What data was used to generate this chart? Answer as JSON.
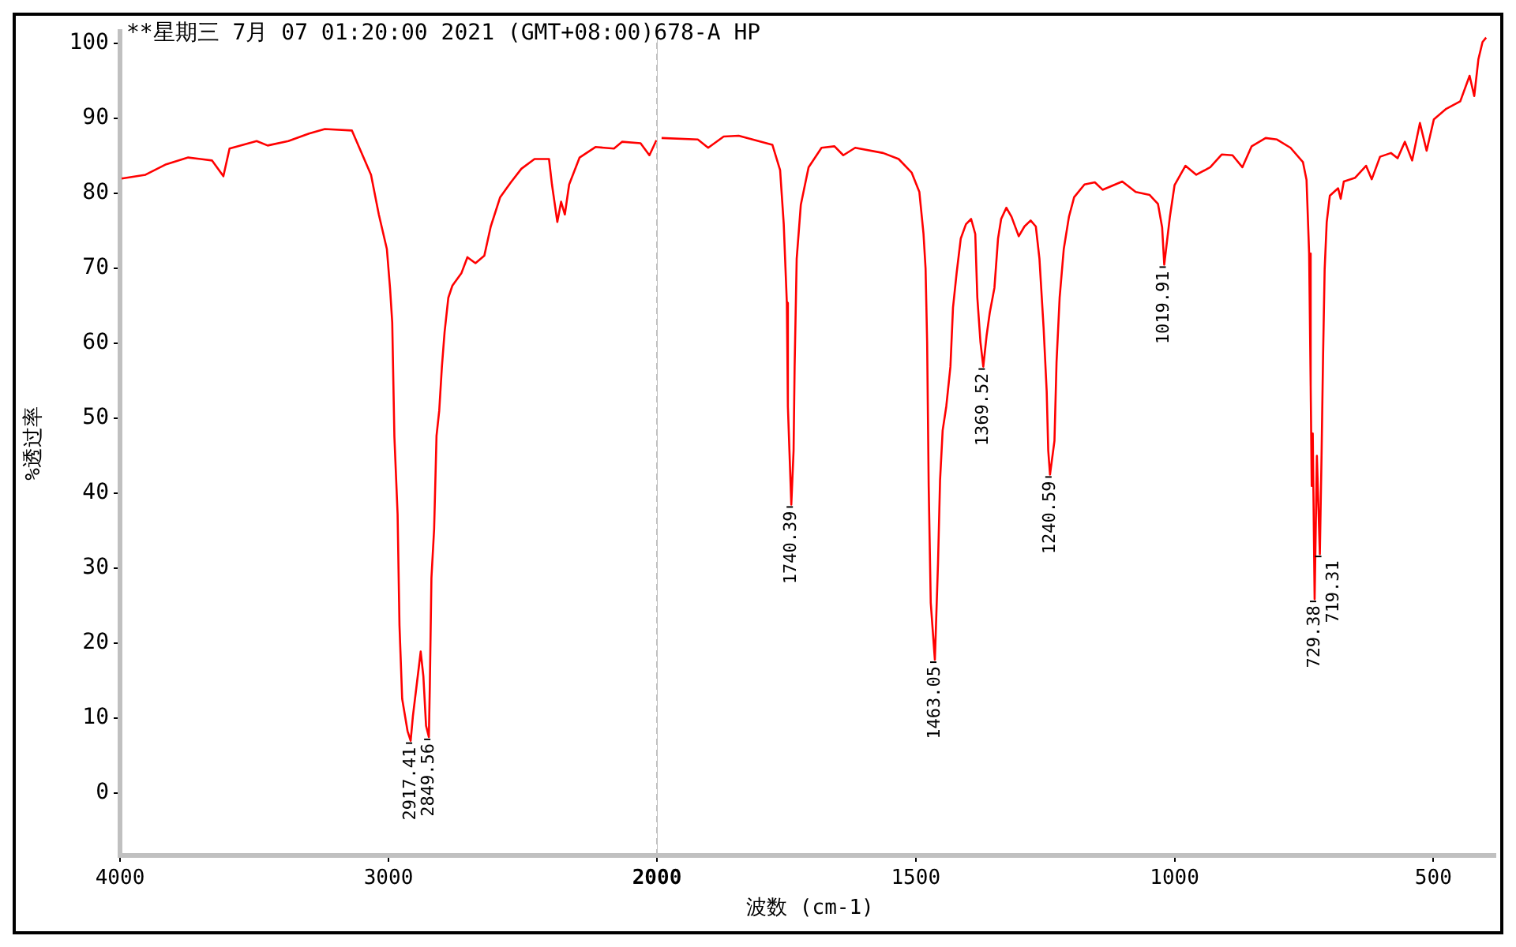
{
  "chart_data": [
    {
      "type": "line",
      "title": "**星期三 7月 07 01:20:00 2021 (GMT+08:00)678-A HP",
      "ylabel": "%透过率",
      "xlim": [
        4000,
        2000
      ],
      "xticks": [
        4000,
        3000,
        2000
      ],
      "ylim": [
        -8.3,
        101.6
      ],
      "yticks": [
        0,
        10,
        20,
        30,
        40,
        50,
        60,
        70,
        80,
        90,
        100
      ],
      "grid": false,
      "legend": false,
      "marker": "none",
      "ref_lines": [
        {
          "axis": "x",
          "value": 2000,
          "color": "#c0c0c0",
          "line_style": "dashed"
        }
      ],
      "annotations": [
        {
          "text": "2917.41",
          "x": 2917.41,
          "y": 7.0
        },
        {
          "text": "2849.56",
          "x": 2849.56,
          "y": 7.5
        }
      ],
      "series": [
        {
          "color": "#ff0000",
          "x": [
            3994,
            3905,
            3828,
            3746,
            3657,
            3615,
            3592,
            3491,
            3450,
            3373,
            3296,
            3237,
            3136,
            3112,
            3065,
            3036,
            3006,
            2994,
            2986,
            2978,
            2966,
            2959,
            2949,
            2929,
            2917.41,
            2909,
            2889,
            2880,
            2870,
            2860,
            2849.56,
            2846,
            2840,
            2830,
            2821,
            2811,
            2801,
            2791,
            2777,
            2762,
            2728,
            2706,
            2676,
            2643,
            2619,
            2584,
            2544,
            2505,
            2456,
            2402,
            2391,
            2371,
            2357,
            2343,
            2327,
            2288,
            2229,
            2160,
            2130,
            2061,
            2028,
            2002
          ],
          "values": [
            82.0,
            82.5,
            83.9,
            84.8,
            84.4,
            82.3,
            86.0,
            87.0,
            86.4,
            87.0,
            88.0,
            88.6,
            88.4,
            86.4,
            82.5,
            77.2,
            72.6,
            67.3,
            62.8,
            47.6,
            37.2,
            22.4,
            12.6,
            8.3,
            7.0,
            10.3,
            16.2,
            18.9,
            15.6,
            9.0,
            7.5,
            14.2,
            28.7,
            35.2,
            47.7,
            51.0,
            56.9,
            61.5,
            66.1,
            67.7,
            69.4,
            71.5,
            70.7,
            71.7,
            75.6,
            79.5,
            81.5,
            83.3,
            84.6,
            84.6,
            81.2,
            76.2,
            78.9,
            77.2,
            81.2,
            84.8,
            86.2,
            86.0,
            86.9,
            86.7,
            85.1,
            87.1
          ]
        }
      ]
    },
    {
      "type": "line",
      "xlabel": "波数 (cm-1)",
      "xlim": [
        2000,
        380
      ],
      "xticks": [
        1500,
        1000,
        500
      ],
      "ylim": [
        -8.3,
        101.6
      ],
      "yticks": [
        0,
        10,
        20,
        30,
        40,
        50,
        60,
        70,
        80,
        90,
        100
      ],
      "tick_labels": "x",
      "grid": false,
      "legend": false,
      "marker": "none",
      "annotations": [
        {
          "text": "1740.39",
          "x": 1740.39,
          "y": 38.5
        },
        {
          "text": "1463.05",
          "x": 1463.05,
          "y": 17.8
        },
        {
          "text": "1369.52",
          "x": 1369.52,
          "y": 56.9
        },
        {
          "text": "1240.59",
          "x": 1240.59,
          "y": 42.5
        },
        {
          "text": "1019.91",
          "x": 1019.91,
          "y": 70.5
        },
        {
          "text": "729.38",
          "x": 729.38,
          "y": 25.9
        },
        {
          "text": "719.31",
          "x": 719.31,
          "y": 31.9
        }
      ],
      "series": [
        {
          "color": "#ff0000",
          "x": [
            1991,
            1921,
            1901,
            1871,
            1842,
            1777,
            1762,
            1755,
            1749,
            1747,
            1740.39,
            1736,
            1734,
            1730,
            1722,
            1707,
            1682,
            1657,
            1640,
            1617,
            1563,
            1533,
            1508,
            1493,
            1485,
            1481,
            1478,
            1475,
            1471,
            1463.05,
            1457,
            1453,
            1448,
            1441,
            1433,
            1428,
            1421,
            1413,
            1403,
            1393,
            1385,
            1381,
            1375,
            1369.52,
            1363,
            1357,
            1348,
            1341,
            1335,
            1325,
            1315,
            1301,
            1290,
            1278,
            1268,
            1261,
            1253,
            1247,
            1244,
            1240.59,
            1232,
            1228,
            1222,
            1214,
            1204,
            1194,
            1174,
            1154,
            1139,
            1101,
            1075,
            1048,
            1032,
            1024,
            1019.91,
            1009,
            1000,
            979,
            958,
            931,
            909,
            888,
            869,
            851,
            824,
            802,
            776,
            752,
            745,
            740,
            737,
            735,
            733,
            729.38,
            725,
            719.31,
            716,
            713,
            710,
            706,
            700,
            684,
            679,
            673,
            651,
            630,
            619,
            603,
            582,
            569,
            555,
            541,
            526,
            513,
            499,
            475,
            448,
            430,
            421,
            413,
            405,
            398
          ],
          "values": [
            87.4,
            87.2,
            86.1,
            87.6,
            87.7,
            86.5,
            83.1,
            75.9,
            65.4,
            51.6,
            38.5,
            45.7,
            56.9,
            71.3,
            78.5,
            83.5,
            86.1,
            86.3,
            85.1,
            86.1,
            85.4,
            84.6,
            82.8,
            80.2,
            74.6,
            70.0,
            60.2,
            41.1,
            25.4,
            17.8,
            30.6,
            41.8,
            48.4,
            51.6,
            56.9,
            64.8,
            69.4,
            74.0,
            75.9,
            76.6,
            74.6,
            66.1,
            60.2,
            56.9,
            61.1,
            64.1,
            67.4,
            74.0,
            76.6,
            78.1,
            76.9,
            74.3,
            75.6,
            76.4,
            75.6,
            71.3,
            62.1,
            53.6,
            45.7,
            42.5,
            47.0,
            57.5,
            66.1,
            72.6,
            76.9,
            79.5,
            81.2,
            81.5,
            80.5,
            81.6,
            80.2,
            79.8,
            78.6,
            75.5,
            70.5,
            76.9,
            81.1,
            83.7,
            82.5,
            83.5,
            85.2,
            85.1,
            83.5,
            86.3,
            87.4,
            87.2,
            86.1,
            84.2,
            81.8,
            72.0,
            54.3,
            41.0,
            48.0,
            25.9,
            45.0,
            31.9,
            45.0,
            58.6,
            69.9,
            76.2,
            79.7,
            80.7,
            79.3,
            81.6,
            82.1,
            83.7,
            81.9,
            84.9,
            85.4,
            84.7,
            86.9,
            84.4,
            89.4,
            85.7,
            89.9,
            91.3,
            92.3,
            95.7,
            93.0,
            97.9,
            100.2,
            100.8
          ]
        }
      ]
    }
  ]
}
